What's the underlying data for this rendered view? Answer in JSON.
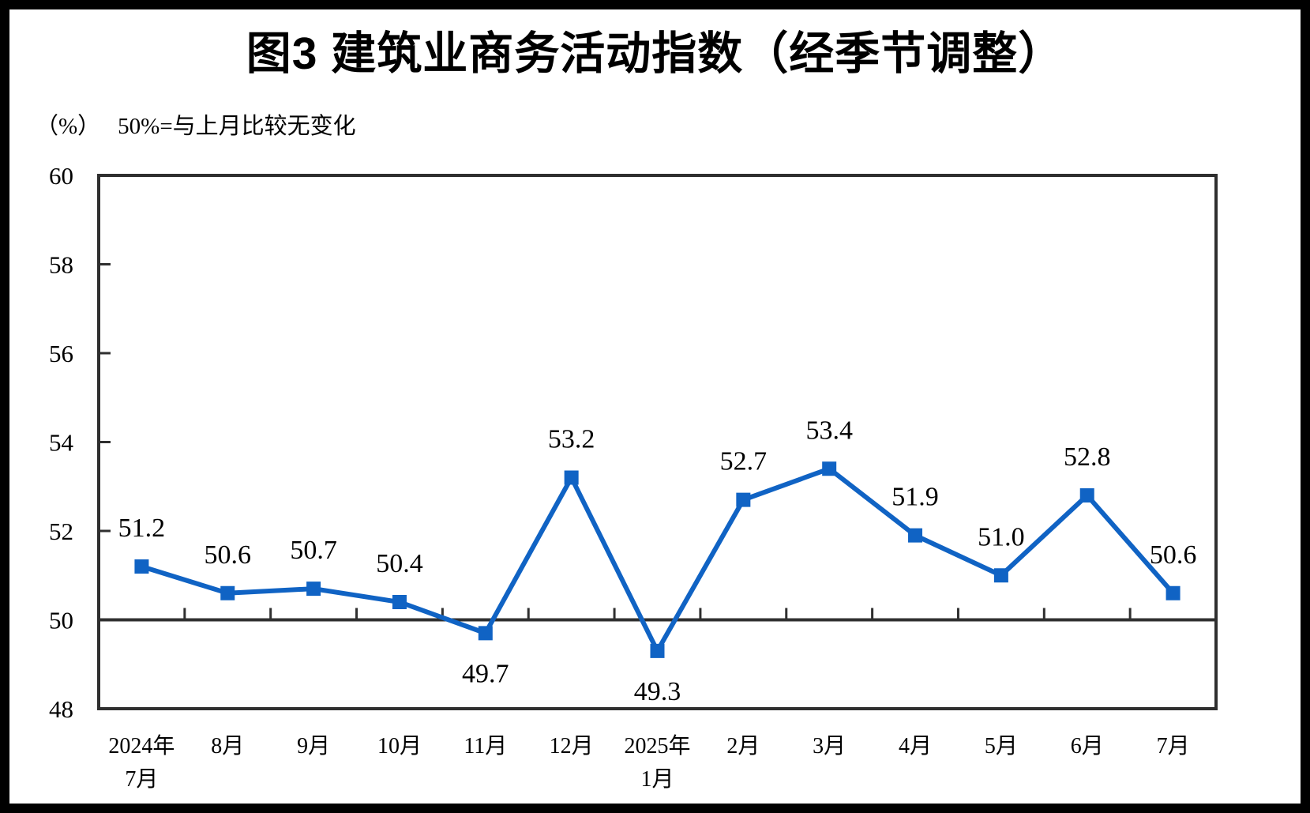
{
  "title": "图3  建筑业商务活动指数（经季节调整）",
  "subtitle": {
    "unit_label": "（%）",
    "note": "50%=与上月比较无变化"
  },
  "chart_data": {
    "type": "line",
    "title": "图3 建筑业商务活动指数（经季节调整）",
    "unit": "（%）",
    "annotation": "50%=与上月比较无变化",
    "categories": [
      "2024年7月",
      "8月",
      "9月",
      "10月",
      "11月",
      "12月",
      "2025年1月",
      "2月",
      "3月",
      "4月",
      "5月",
      "6月",
      "7月"
    ],
    "category_label_lines": [
      [
        "2024年",
        "7月"
      ],
      [
        "8月"
      ],
      [
        "9月"
      ],
      [
        "10月"
      ],
      [
        "11月"
      ],
      [
        "12月"
      ],
      [
        "2025年",
        "1月"
      ],
      [
        "2月"
      ],
      [
        "3月"
      ],
      [
        "4月"
      ],
      [
        "5月"
      ],
      [
        "6月"
      ],
      [
        "7月"
      ]
    ],
    "series": [
      {
        "name": "建筑业商务活动指数",
        "values": [
          51.2,
          50.6,
          50.7,
          50.4,
          49.7,
          53.2,
          49.3,
          52.7,
          53.4,
          51.9,
          51.0,
          52.8,
          50.6
        ]
      }
    ],
    "value_labels": [
      "51.2",
      "50.6",
      "50.7",
      "50.4",
      "49.7",
      "53.2",
      "49.3",
      "52.7",
      "53.4",
      "51.9",
      "51.0",
      "52.8",
      "50.6"
    ],
    "ylim": [
      48,
      60
    ],
    "yticks": [
      48,
      50,
      52,
      54,
      56,
      58,
      60
    ],
    "reference_line": 50,
    "grid": false,
    "legend": false,
    "colors": {
      "line": "#1063c4",
      "marker": "#1063c4",
      "axis": "#2f2f2f",
      "text": "#000000"
    }
  }
}
